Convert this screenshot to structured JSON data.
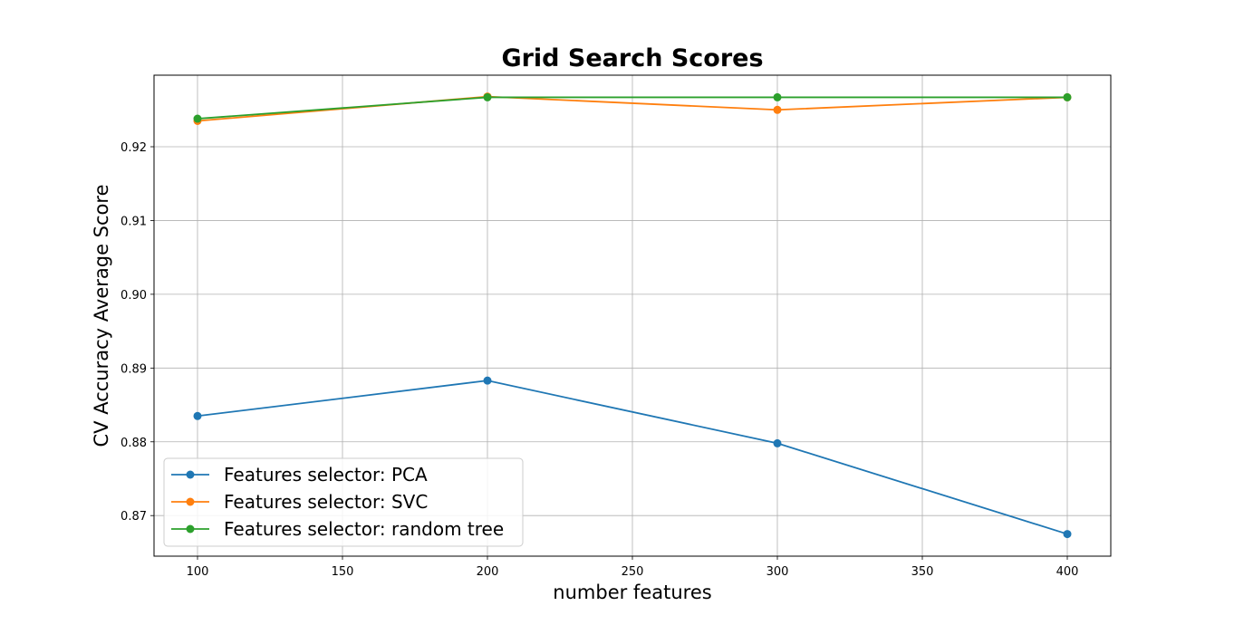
{
  "chart_data": {
    "type": "line",
    "title": "Grid Search Scores",
    "xlabel": "number features",
    "ylabel": "CV Accuracy Average Score",
    "x": [
      100,
      200,
      300,
      400
    ],
    "xlim": [
      85,
      415
    ],
    "ylim": [
      0.8645,
      0.9297
    ],
    "xticks": [
      "100",
      "150",
      "200",
      "250",
      "300",
      "350",
      "400"
    ],
    "yticks": [
      "0.87",
      "0.88",
      "0.89",
      "0.90",
      "0.91",
      "0.92"
    ],
    "grid": true,
    "legend_position": "lower-left",
    "series": [
      {
        "name": "Features selector: PCA",
        "color": "#1f77b4",
        "values": [
          0.8835,
          0.8883,
          0.8798,
          0.8675
        ]
      },
      {
        "name": "Features selector: SVC",
        "color": "#ff7f0e",
        "values": [
          0.9235,
          0.9268,
          0.925,
          0.9267
        ]
      },
      {
        "name": "Features selector: random tree",
        "color": "#2ca02c",
        "values": [
          0.9238,
          0.9267,
          0.9267,
          0.9267
        ]
      }
    ]
  }
}
